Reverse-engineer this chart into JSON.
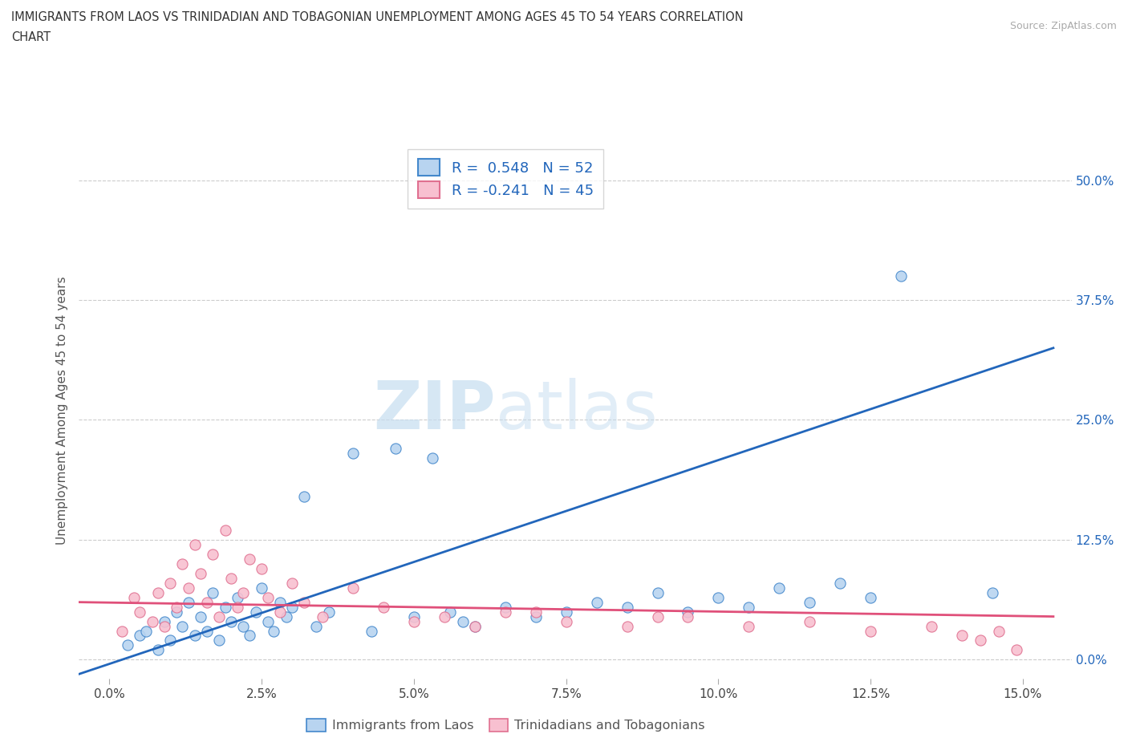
{
  "title_line1": "IMMIGRANTS FROM LAOS VS TRINIDADIAN AND TOBAGONIAN UNEMPLOYMENT AMONG AGES 45 TO 54 YEARS CORRELATION",
  "title_line2": "CHART",
  "source_text": "Source: ZipAtlas.com",
  "ylabel": "Unemployment Among Ages 45 to 54 years",
  "xlabel_ticks": [
    "0.0%",
    "2.5%",
    "5.0%",
    "7.5%",
    "10.0%",
    "12.5%",
    "15.0%"
  ],
  "xlabel_vals": [
    0.0,
    2.5,
    5.0,
    7.5,
    10.0,
    12.5,
    15.0
  ],
  "ytick_labels": [
    "0.0%",
    "12.5%",
    "25.0%",
    "37.5%",
    "50.0%"
  ],
  "ytick_vals": [
    0.0,
    12.5,
    25.0,
    37.5,
    50.0
  ],
  "xlim": [
    -0.5,
    15.8
  ],
  "ylim": [
    -2.0,
    54.0
  ],
  "blue_color": "#b8d4f0",
  "blue_edge_color": "#4488cc",
  "blue_line_color": "#2266bb",
  "pink_color": "#f8c0d0",
  "pink_edge_color": "#e07090",
  "pink_line_color": "#e0507a",
  "legend_r_color": "#2266bb",
  "legend_blue_label": "R =  0.548   N = 52",
  "legend_pink_label": "R = -0.241   N = 45",
  "watermark_zip": "ZIP",
  "watermark_atlas": "atlas",
  "blue_scatter_x": [
    0.3,
    0.5,
    0.6,
    0.8,
    0.9,
    1.0,
    1.1,
    1.2,
    1.3,
    1.4,
    1.5,
    1.6,
    1.7,
    1.8,
    1.9,
    2.0,
    2.1,
    2.2,
    2.3,
    2.4,
    2.5,
    2.6,
    2.7,
    2.8,
    2.9,
    3.0,
    3.2,
    3.4,
    3.6,
    4.0,
    4.3,
    4.7,
    5.0,
    5.3,
    5.6,
    5.8,
    6.0,
    6.5,
    7.0,
    7.5,
    8.0,
    8.5,
    9.0,
    9.5,
    10.0,
    10.5,
    11.0,
    11.5,
    12.0,
    12.5,
    13.0,
    14.5
  ],
  "blue_scatter_y": [
    1.5,
    2.5,
    3.0,
    1.0,
    4.0,
    2.0,
    5.0,
    3.5,
    6.0,
    2.5,
    4.5,
    3.0,
    7.0,
    2.0,
    5.5,
    4.0,
    6.5,
    3.5,
    2.5,
    5.0,
    7.5,
    4.0,
    3.0,
    6.0,
    4.5,
    5.5,
    17.0,
    3.5,
    5.0,
    21.5,
    3.0,
    22.0,
    4.5,
    21.0,
    5.0,
    4.0,
    3.5,
    5.5,
    4.5,
    5.0,
    6.0,
    5.5,
    7.0,
    5.0,
    6.5,
    5.5,
    7.5,
    6.0,
    8.0,
    6.5,
    40.0,
    7.0
  ],
  "pink_scatter_x": [
    0.2,
    0.4,
    0.5,
    0.7,
    0.8,
    0.9,
    1.0,
    1.1,
    1.2,
    1.3,
    1.4,
    1.5,
    1.6,
    1.7,
    1.8,
    1.9,
    2.0,
    2.1,
    2.2,
    2.3,
    2.5,
    2.6,
    2.8,
    3.0,
    3.2,
    3.5,
    4.0,
    4.5,
    5.5,
    6.5,
    7.5,
    8.5,
    9.5,
    10.5,
    11.5,
    12.5,
    13.5,
    14.0,
    14.3,
    14.6,
    14.9,
    5.0,
    6.0,
    7.0,
    9.0
  ],
  "pink_scatter_y": [
    3.0,
    6.5,
    5.0,
    4.0,
    7.0,
    3.5,
    8.0,
    5.5,
    10.0,
    7.5,
    12.0,
    9.0,
    6.0,
    11.0,
    4.5,
    13.5,
    8.5,
    5.5,
    7.0,
    10.5,
    9.5,
    6.5,
    5.0,
    8.0,
    6.0,
    4.5,
    7.5,
    5.5,
    4.5,
    5.0,
    4.0,
    3.5,
    4.5,
    3.5,
    4.0,
    3.0,
    3.5,
    2.5,
    2.0,
    3.0,
    1.0,
    4.0,
    3.5,
    5.0,
    4.5
  ],
  "blue_trend_x": [
    -0.5,
    15.5
  ],
  "blue_trend_y": [
    -1.5,
    32.5
  ],
  "pink_trend_x": [
    -0.5,
    15.5
  ],
  "pink_trend_y": [
    6.0,
    4.5
  ],
  "legend_label_blue": "Immigrants from Laos",
  "legend_label_pink": "Trinidadians and Tobagonians"
}
